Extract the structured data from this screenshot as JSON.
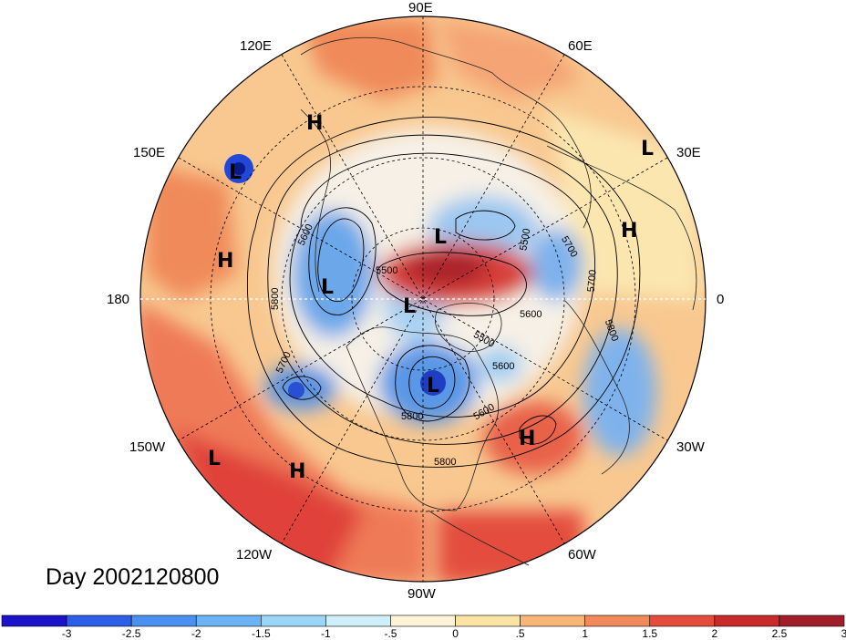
{
  "title": "Day 2002120800",
  "longitude_labels": {
    "n": "90E",
    "ne1": "60E",
    "ne2": "30E",
    "e": "0",
    "se1": "30W",
    "se2": "60W",
    "s": "90W",
    "sw1": "120W",
    "sw2": "150W",
    "w": "180",
    "nw1": "150E",
    "nw2": "120E"
  },
  "contour_labels": [
    "5600",
    "5700",
    "5800",
    "5500",
    "5600",
    "5700",
    "5800",
    "5700",
    "5800",
    "5500",
    "5600",
    "5500",
    "5600",
    "5800"
  ],
  "pressure_centers": [
    {
      "label": "H",
      "color": "#000000"
    },
    {
      "label": "L",
      "color": "#000000"
    },
    {
      "label": "L",
      "color": "#000000"
    },
    {
      "label": "H",
      "color": "#000000"
    },
    {
      "label": "H",
      "color": "#000000"
    },
    {
      "label": "L",
      "color": "#000000"
    },
    {
      "label": "L",
      "color": "#000000"
    },
    {
      "label": "L",
      "color": "#000000"
    },
    {
      "label": "L",
      "color": "#000000"
    },
    {
      "label": "H",
      "color": "#000000"
    },
    {
      "label": "L",
      "color": "#000000"
    },
    {
      "label": "H",
      "color": "#000000"
    }
  ],
  "colorbar": {
    "colors": [
      "#1a13c9",
      "#2c5ee8",
      "#4a90f0",
      "#6cb3f5",
      "#9ad6f7",
      "#cff0fa",
      "#fdf4d8",
      "#fbe3a4",
      "#f8b578",
      "#f08a5a",
      "#e44d3c",
      "#c92a2a",
      "#a01e2a"
    ],
    "ticks": [
      "-3",
      "-2.5",
      "-2",
      "-1.5",
      "-1",
      "-.5",
      "0",
      ".5",
      "1",
      "1.5",
      "2",
      "2.5",
      "3"
    ]
  }
}
